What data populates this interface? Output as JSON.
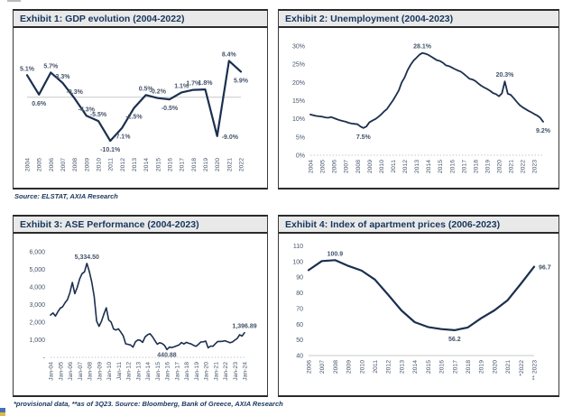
{
  "colors": {
    "line": "#1b2f4e",
    "labels": "#44546a",
    "title_text": "#17365d",
    "titlebar_bg": "#e9e9e9",
    "panel_border": "#2b2b2b",
    "axis_line": "#c8c8c8"
  },
  "panels": [
    {
      "title": "Exhibit 1: GDP evolution (2004-2022)",
      "source": "Source: ELSTAT, AXIA Research"
    },
    {
      "title": "Exhibit 2: Unemployment (2004-2023)",
      "source": ""
    },
    {
      "title": "Exhibit 3: ASE Performance (2004-2023)",
      "source": "*provisional data, **as of 3Q23. Source: Bloomberg, Bank of Greece, AXIA Research"
    },
    {
      "title": "Exhibit 4: Index of apartment prices (2006-2023)",
      "source": ""
    }
  ],
  "chart_data": [
    {
      "type": "line",
      "title": "Exhibit 1: GDP evolution (2004-2022)",
      "categories": [
        "2004",
        "2005",
        "2006",
        "2007",
        "2008",
        "2009",
        "2010",
        "2011",
        "2012",
        "2013",
        "2014",
        "2015",
        "2016",
        "2017",
        "2018",
        "2019",
        "2020",
        "2021",
        "2022"
      ],
      "values": [
        5.1,
        0.6,
        5.7,
        3.3,
        -0.3,
        -4.3,
        -5.5,
        -10.1,
        -7.1,
        -2.5,
        0.5,
        -0.2,
        -0.5,
        1.1,
        1.7,
        1.8,
        -9.0,
        8.4,
        5.9
      ],
      "data_labels": [
        "5.1%",
        "0.6%",
        "5.7%",
        "3.3%",
        "-0.3%",
        "-4.3%",
        "-5.5%",
        "-10.1%",
        "-7.1%",
        "-2.5%",
        "0.5%",
        "-0.2%",
        "-0.5%",
        "1.1%",
        "1.7%",
        "1.8%",
        "-9.0%",
        "8.4%",
        "5.9%"
      ],
      "label_pos": [
        "above",
        "below",
        "above",
        "above",
        "above",
        "above",
        "above",
        "below",
        "below",
        "below",
        "above",
        "above",
        "below",
        "above",
        "above",
        "above",
        "right",
        "above",
        "below"
      ],
      "ylim": [
        -13,
        11
      ],
      "baseline": 0,
      "baseline_dotted": false,
      "points_per_label": 1,
      "xlabel": "",
      "ylabel": "",
      "grid": "off",
      "legend": "none"
    },
    {
      "type": "line",
      "title": "Exhibit 2: Unemployment (2004-2023)",
      "categories": [
        "2004",
        "2005",
        "2006",
        "2007",
        "2008",
        "2009",
        "2010",
        "2011",
        "2012",
        "2013",
        "2014",
        "2015",
        "2016",
        "2017",
        "2018",
        "2019",
        "2020",
        "2021",
        "2022",
        "2023"
      ],
      "values": [
        11.2,
        11.0,
        10.8,
        10.7,
        10.6,
        10.4,
        10.3,
        10.5,
        10.2,
        9.9,
        9.6,
        9.4,
        9.2,
        8.9,
        8.7,
        8.6,
        8.5,
        7.9,
        7.5,
        7.9,
        9.0,
        9.5,
        9.9,
        10.5,
        11.2,
        12.0,
        12.7,
        13.9,
        15.0,
        16.4,
        17.8,
        20.0,
        21.4,
        23.4,
        24.8,
        26.0,
        26.8,
        27.6,
        28.1,
        27.9,
        27.6,
        27.1,
        26.6,
        26.1,
        25.9,
        25.4,
        24.7,
        24.5,
        24.1,
        23.7,
        23.3,
        23.0,
        22.4,
        21.7,
        21.0,
        20.8,
        20.4,
        19.7,
        19.1,
        18.6,
        18.2,
        17.7,
        17.1,
        16.8,
        16.2,
        17.0,
        20.3,
        16.9,
        16.6,
        15.7,
        14.7,
        13.8,
        13.2,
        12.7,
        12.2,
        11.8,
        11.3,
        10.9,
        10.3,
        9.2
      ],
      "y_ticks": [
        [
          30,
          "30%"
        ],
        [
          25,
          "25%"
        ],
        [
          20,
          "20%"
        ],
        [
          15,
          "15%"
        ],
        [
          10,
          "10%"
        ],
        [
          5,
          "5%"
        ],
        [
          0,
          "0%"
        ]
      ],
      "annotations": [
        {
          "i": 38,
          "text": "28.1%",
          "pos": "above"
        },
        {
          "i": 18,
          "text": "7.5%",
          "pos": "below"
        },
        {
          "i": 66,
          "text": "20.3%",
          "pos": "above"
        },
        {
          "i": 79,
          "text": "9.2%",
          "pos": "below"
        }
      ],
      "ylim": [
        0,
        32
      ],
      "baseline": 0,
      "baseline_dotted": true,
      "points_per_label": 4,
      "xlabel": "",
      "ylabel": "",
      "grid": "off",
      "legend": "none"
    },
    {
      "type": "line",
      "title": "Exhibit 3: ASE Performance (2004-2023)",
      "categories": [
        "Jan-04",
        "Jan-05",
        "Jan-06",
        "Jan-07",
        "Jan-08",
        "Jan-09",
        "Jan-10",
        "Jan-11",
        "Jan-12",
        "Jan-13",
        "Jan-14",
        "Jan-15",
        "Jan-16",
        "Jan-17",
        "Jan-18",
        "Jan-19",
        "Jan-20",
        "Jan-21",
        "Jan-22",
        "Jan-23",
        "Jan-24"
      ],
      "values": [
        2400,
        2520,
        2340,
        2580,
        2790,
        2870,
        3100,
        3280,
        3680,
        4250,
        3610,
        3970,
        4450,
        4750,
        4850,
        5334.5,
        4870,
        4270,
        3450,
        2060,
        1760,
        2040,
        2450,
        2810,
        2120,
        1990,
        1610,
        1550,
        1620,
        1430,
        1220,
        770,
        740,
        700,
        580,
        880,
        990,
        970,
        850,
        1160,
        1280,
        1340,
        1180,
        960,
        750,
        830,
        790,
        680,
        440.88,
        580,
        560,
        600,
        650,
        700,
        840,
        760,
        850,
        800,
        760,
        680,
        630,
        740,
        870,
        880,
        920,
        540,
        640,
        630,
        780,
        900,
        900,
        910,
        940,
        880,
        830,
        870,
        980,
        1070,
        1280,
        1210,
        1396.89
      ],
      "y_ticks": [
        [
          6000,
          "6,000"
        ],
        [
          5000,
          "5,000"
        ],
        [
          4000,
          "4,000"
        ],
        [
          3000,
          "3,000"
        ],
        [
          2000,
          "2,000"
        ],
        [
          1000,
          "1,000"
        ],
        [
          0,
          "-"
        ]
      ],
      "annotations": [
        {
          "i": 15,
          "text": "5,334.50",
          "pos": "above"
        },
        {
          "i": 48,
          "text": "440.88",
          "pos": "below",
          "dy": -4
        },
        {
          "i": 80,
          "text": "1,396.89",
          "pos": "above"
        }
      ],
      "ylim": [
        0,
        6300
      ],
      "baseline": 0,
      "baseline_dotted": true,
      "points_per_label": 4,
      "xlabel": "",
      "ylabel": "",
      "grid": "off",
      "legend": "none"
    },
    {
      "type": "line",
      "title": "Exhibit 4: Index of apartment prices (2006-2023)",
      "categories": [
        "2006",
        "2007",
        "2008",
        "2009",
        "2010",
        "2011",
        "2012",
        "2013",
        "2014",
        "2015",
        "2016",
        "2017",
        "2018",
        "2019",
        "2020",
        "2021",
        "*2022",
        "** 2023"
      ],
      "values": [
        94.5,
        100.3,
        100.9,
        97.2,
        94.2,
        88.5,
        78.8,
        68.8,
        61.3,
        58.2,
        56.9,
        56.2,
        57.9,
        63.8,
        68.8,
        75.3,
        85.8,
        96.7
      ],
      "y_ticks": [
        [
          110,
          "110"
        ],
        [
          100,
          "100"
        ],
        [
          90,
          "90"
        ],
        [
          80,
          "80"
        ],
        [
          70,
          "70"
        ],
        [
          60,
          "60"
        ],
        [
          50,
          "50"
        ],
        [
          40,
          "40"
        ]
      ],
      "annotations": [
        {
          "i": 2,
          "text": "100.9",
          "pos": "above"
        },
        {
          "i": 11,
          "text": "56.2",
          "pos": "below"
        },
        {
          "i": 17,
          "text": "96.7",
          "pos": "right"
        }
      ],
      "ylim": [
        40,
        112
      ],
      "baseline": 40,
      "baseline_dotted": false,
      "points_per_label": 1,
      "xlabel": "",
      "ylabel": "",
      "grid": "off",
      "legend": "none"
    }
  ]
}
